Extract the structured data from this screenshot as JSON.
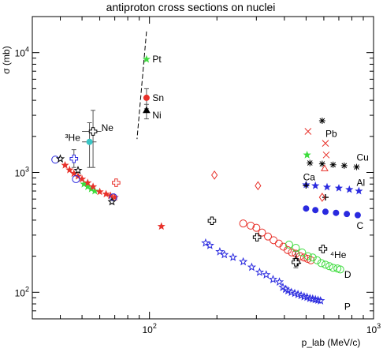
{
  "chart_data": {
    "type": "scatter",
    "title": "antiproton cross sections on nuclei",
    "xlabel": "p_lab (MeV/c)",
    "ylabel": "σ (mb)",
    "x_scale": "log",
    "y_scale": "log",
    "xlim": [
      30,
      1000
    ],
    "ylim": [
      60,
      20000
    ],
    "x_major_ticks": [
      {
        "value": 100,
        "base": "10",
        "exp": "2"
      },
      {
        "value": 1000,
        "base": "10",
        "exp": "3"
      }
    ],
    "y_major_ticks": [
      {
        "value": 100,
        "base": "10",
        "exp": "2"
      },
      {
        "value": 1000,
        "base": "10",
        "exp": "3"
      },
      {
        "value": 10000,
        "base": "10",
        "exp": "4"
      }
    ],
    "grid": false,
    "legend": "none",
    "colors": {
      "red": "#e8312a",
      "blue": "#2a2adf",
      "green": "#3ddc3d",
      "black": "#000000",
      "cyan": "#39c5c5"
    },
    "series": [
      {
        "name": "P",
        "color": "#2a2adf",
        "marker": "star-open",
        "points": [
          [
            178,
            258
          ],
          [
            186,
            246
          ],
          [
            206,
            218
          ],
          [
            216,
            206
          ],
          [
            236,
            196
          ],
          [
            262,
            180
          ],
          [
            286,
            162
          ],
          [
            310,
            147
          ],
          [
            332,
            140
          ],
          [
            356,
            128
          ],
          [
            380,
            122
          ],
          [
            394,
            110
          ],
          [
            405,
            106
          ],
          [
            415,
            103
          ],
          [
            430,
            100
          ],
          [
            445,
            98
          ],
          [
            460,
            96
          ],
          [
            475,
            94
          ],
          [
            490,
            92
          ],
          [
            505,
            91
          ],
          [
            520,
            89
          ],
          [
            535,
            88
          ],
          [
            550,
            87
          ],
          [
            565,
            86
          ],
          [
            580,
            85
          ]
        ]
      },
      {
        "name": "D",
        "color": "#e8312a",
        "marker": "circle-open",
        "points": [
          [
            262,
            375
          ],
          [
            283,
            360
          ],
          [
            300,
            345
          ],
          [
            318,
            315
          ],
          [
            338,
            292
          ],
          [
            358,
            272
          ],
          [
            378,
            255
          ],
          [
            396,
            240
          ],
          [
            414,
            225
          ],
          [
            432,
            215
          ],
          [
            450,
            210
          ],
          [
            470,
            200
          ],
          [
            490,
            195
          ],
          [
            508,
            190
          ],
          [
            525,
            185
          ]
        ]
      },
      {
        "name": "",
        "color": "#3ddc3d",
        "marker": "circle-open",
        "points": [
          [
            420,
            250
          ],
          [
            450,
            235
          ],
          [
            480,
            215
          ],
          [
            510,
            200
          ],
          [
            535,
            195
          ],
          [
            560,
            185
          ],
          [
            585,
            175
          ],
          [
            610,
            170
          ],
          [
            635,
            165
          ],
          [
            660,
            160
          ],
          [
            690,
            158
          ],
          [
            710,
            155
          ]
        ]
      },
      {
        "name": "",
        "color": "#000000",
        "marker": "cross",
        "points": [
          [
            450,
            190
          ],
          [
            455,
            180
          ],
          [
            460,
            175
          ]
        ]
      },
      {
        "name": "⁴He",
        "color": "#000000",
        "marker": "plus-open",
        "points": [
          [
            190,
            395
          ],
          [
            302,
            288
          ],
          [
            450,
            178
          ],
          [
            595,
            230
          ]
        ]
      },
      {
        "name": "C",
        "color": "#2a2adf",
        "marker": "dot",
        "points": [
          [
            500,
            500
          ],
          [
            550,
            485
          ],
          [
            610,
            470
          ],
          [
            680,
            460
          ],
          [
            760,
            450
          ],
          [
            850,
            440
          ]
        ]
      },
      {
        "name": "Al",
        "color": "#2a2adf",
        "marker": "star",
        "points": [
          [
            500,
            790
          ],
          [
            550,
            775
          ],
          [
            620,
            755
          ],
          [
            700,
            740
          ],
          [
            780,
            720
          ],
          [
            860,
            700
          ]
        ]
      },
      {
        "name": "Cu",
        "color": "#000000",
        "marker": "asterisk",
        "points": [
          [
            520,
            1200
          ],
          [
            590,
            1180
          ],
          [
            660,
            1160
          ],
          [
            740,
            1140
          ],
          [
            840,
            1110
          ]
        ]
      },
      {
        "name": "Ca",
        "color": "#000000",
        "marker": "cross",
        "points": [
          [
            500,
            780
          ],
          [
            610,
            620
          ]
        ]
      },
      {
        "name": "",
        "color": "#e8312a",
        "marker": "diamond-open",
        "points": [
          [
            195,
            950
          ],
          [
            305,
            775
          ],
          [
            590,
            620
          ]
        ]
      },
      {
        "name": "Pb",
        "color": "#e8312a",
        "marker": "x",
        "points": [
          [
            510,
            2200
          ],
          [
            615,
            1400
          ],
          [
            610,
            1750
          ]
        ]
      },
      {
        "name": "",
        "color": "#000000",
        "marker": "asterisk",
        "points": [
          [
            590,
            2700
          ]
        ]
      },
      {
        "name": "",
        "color": "#3ddc3d",
        "marker": "star",
        "points": [
          [
            505,
            1400
          ]
        ]
      },
      {
        "name": "",
        "color": "#e8312a",
        "marker": "triangle-open",
        "points": [
          [
            605,
            1080
          ]
        ]
      },
      {
        "name": "Pt",
        "color": "#3ddc3d",
        "marker": "star",
        "points": [
          [
            97,
            8800
          ]
        ]
      },
      {
        "name": "Sn",
        "color": "#e8312a",
        "marker": "dot",
        "points": [
          [
            97,
            4200
          ]
        ]
      },
      {
        "name": "Ni",
        "color": "#000000",
        "marker": "triangle",
        "points": [
          [
            97,
            3300
          ]
        ]
      },
      {
        "name": "Ne",
        "color": "#000000",
        "marker": "plus-open",
        "points": [
          [
            56,
            2200
          ]
        ]
      },
      {
        "name": "³He",
        "color": "#39c5c5",
        "marker": "dot",
        "points": [
          [
            54,
            1800
          ]
        ]
      },
      {
        "name": "",
        "color": "#3ddc3d",
        "marker": "star",
        "points": [
          [
            51,
            800
          ],
          [
            53,
            760
          ],
          [
            55,
            730
          ],
          [
            57,
            700
          ]
        ]
      },
      {
        "name": "",
        "color": "#e8312a",
        "marker": "star",
        "points": [
          [
            42,
            1150
          ],
          [
            44,
            1050
          ],
          [
            46,
            980
          ],
          [
            48,
            930
          ],
          [
            50,
            880
          ],
          [
            53,
            820
          ],
          [
            56,
            760
          ],
          [
            60,
            690
          ],
          [
            64,
            660
          ],
          [
            67,
            640
          ],
          [
            70,
            620
          ],
          [
            113,
            355
          ]
        ]
      },
      {
        "name": "",
        "color": "#2a2adf",
        "marker": "circle-open",
        "points": [
          [
            38,
            1280
          ],
          [
            47,
            880
          ],
          [
            69,
            620
          ]
        ]
      },
      {
        "name": "",
        "color": "#000000",
        "marker": "star-open",
        "points": [
          [
            40,
            1300
          ],
          [
            48,
            1040
          ],
          [
            68,
            570
          ]
        ]
      },
      {
        "name": "",
        "color": "#2a2adf",
        "marker": "plus-open",
        "points": [
          [
            46,
            1300
          ]
        ]
      },
      {
        "name": "",
        "color": "#e8312a",
        "marker": "plus-open",
        "points": [
          [
            71,
            820
          ]
        ]
      }
    ],
    "error_bars": [
      {
        "x": 56,
        "y": 2200,
        "ylo": 1100,
        "yhi": 3300,
        "xlo": 50,
        "xhi": 61
      },
      {
        "x": 54,
        "y": 1800,
        "ylo": 1100,
        "yhi": 2600,
        "xlo": 50,
        "xhi": 58
      },
      {
        "x": 97,
        "y": 4200,
        "ylo": 3400,
        "yhi": 5000
      },
      {
        "x": 97,
        "y": 3300,
        "ylo": 2800,
        "yhi": 3700
      },
      {
        "x": 46,
        "y": 1300,
        "ylo": 1100,
        "yhi": 1550
      },
      {
        "x": 450,
        "y": 190,
        "ylo": 160,
        "yhi": 220
      }
    ],
    "fit_line": {
      "style": "dashed",
      "color": "#000000",
      "x1": 97,
      "y1": 15000,
      "x2": 88,
      "y2": 1900
    },
    "labels": [
      {
        "text": "Pt",
        "x": 103,
        "y": 8800
      },
      {
        "text": "Sn",
        "x": 103,
        "y": 4200
      },
      {
        "text": "Ni",
        "x": 103,
        "y": 3000
      },
      {
        "text": "Ne",
        "x": 61,
        "y": 2350
      },
      {
        "text": "³He",
        "x": 42,
        "y": 1950
      },
      {
        "text": "Pb",
        "x": 610,
        "y": 2100
      },
      {
        "text": "Cu",
        "x": 840,
        "y": 1330
      },
      {
        "text": "Ca",
        "x": 485,
        "y": 910
      },
      {
        "text": "Al",
        "x": 840,
        "y": 820
      },
      {
        "text": "C",
        "x": 840,
        "y": 360
      },
      {
        "text": "⁴He",
        "x": 640,
        "y": 205
      },
      {
        "text": "D",
        "x": 740,
        "y": 140
      },
      {
        "text": "P",
        "x": 740,
        "y": 76
      }
    ]
  }
}
